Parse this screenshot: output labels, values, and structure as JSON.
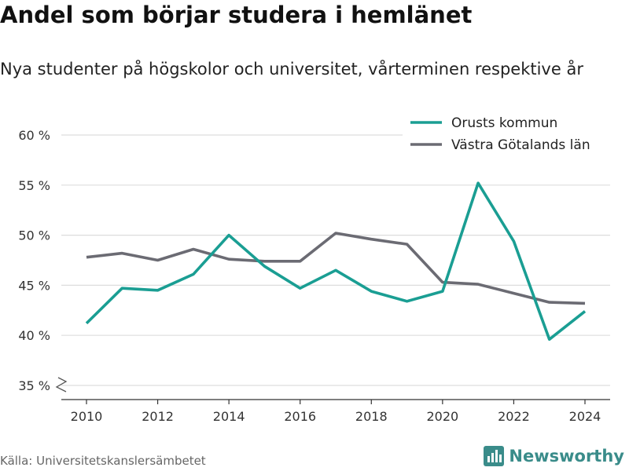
{
  "title": "Andel som börjar studera i hemlänet",
  "subtitle": "Nya studenter på högskolor och universitet, vårterminen respektive år",
  "source": "Källa: Universitetskanslersämbetet",
  "brand": "Newsworthy",
  "colors": {
    "series_orust": "#1a9e93",
    "series_vg": "#6b6b73",
    "grid": "#dddddd",
    "brand": "#3a8c8a"
  },
  "chart_data": {
    "type": "line",
    "x": [
      2010,
      2011,
      2012,
      2013,
      2014,
      2015,
      2016,
      2017,
      2018,
      2019,
      2020,
      2021,
      2022,
      2023,
      2024
    ],
    "series": [
      {
        "name": "Orusts kommun",
        "values": [
          41.2,
          44.7,
          44.5,
          46.1,
          50.0,
          46.9,
          44.7,
          46.5,
          44.4,
          43.4,
          44.4,
          55.2,
          49.4,
          39.6,
          42.4
        ]
      },
      {
        "name": "Västra Götalands län",
        "values": [
          47.8,
          48.2,
          47.5,
          48.6,
          47.6,
          47.4,
          47.4,
          50.2,
          49.6,
          49.1,
          45.3,
          45.1,
          44.2,
          43.3,
          43.2
        ]
      }
    ],
    "xticks": [
      "2010",
      "2012",
      "2014",
      "2016",
      "2018",
      "2020",
      "2022",
      "2024"
    ],
    "yticks": [
      "35 %",
      "40 %",
      "45 %",
      "50 %",
      "55 %",
      "60 %"
    ],
    "ylim": [
      35,
      60
    ],
    "grid": true,
    "legend_position": "top-right",
    "axis_break": true
  }
}
